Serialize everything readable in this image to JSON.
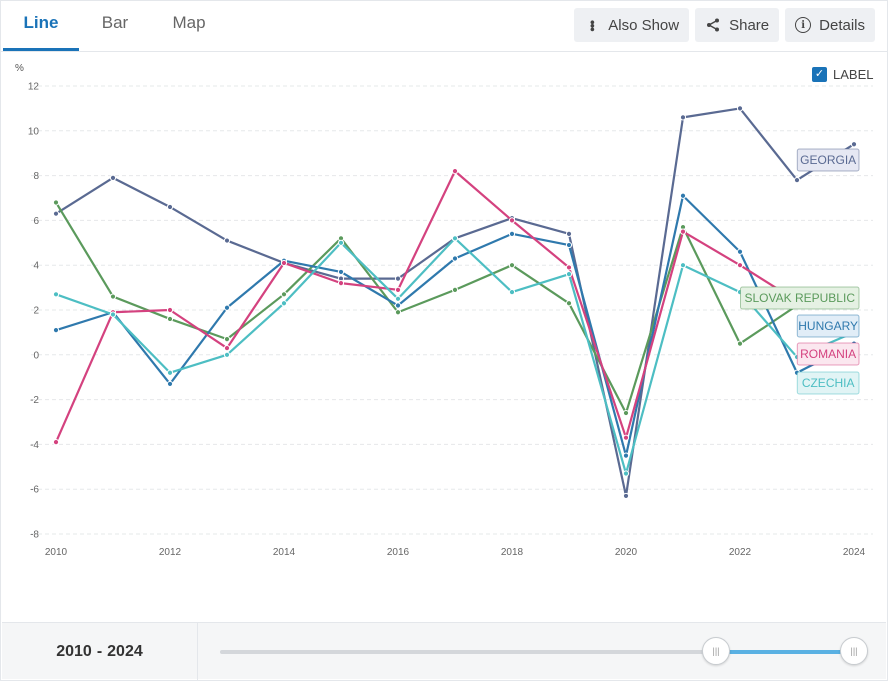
{
  "tabs": [
    {
      "label": "Line",
      "active": true
    },
    {
      "label": "Bar",
      "active": false
    },
    {
      "label": "Map",
      "active": false
    }
  ],
  "toolbar": {
    "also_show": "Also Show",
    "share": "Share",
    "details": "Details"
  },
  "label_toggle": {
    "text": "LABEL",
    "checked": true
  },
  "range": {
    "start": "2010",
    "separator": "-",
    "end": "2024"
  },
  "chart_data": {
    "type": "line",
    "unit": "%",
    "ylim": [
      -8,
      12
    ],
    "yticks": [
      12,
      10,
      8,
      6,
      4,
      2,
      0,
      -2,
      -4,
      -6,
      -8
    ],
    "xticks": [
      "2010",
      "2012",
      "2014",
      "2016",
      "2018",
      "2020",
      "2022",
      "2024"
    ],
    "x": [
      2010,
      2011,
      2012,
      2013,
      2014,
      2015,
      2016,
      2017,
      2018,
      2019,
      2020,
      2021,
      2022,
      2023,
      2024
    ],
    "grid": true,
    "series": [
      {
        "name": "GEORGIA",
        "color": "#5a6a92",
        "label_bg": "#e6e8f3",
        "values": [
          6.3,
          7.9,
          6.6,
          5.1,
          4.1,
          3.4,
          3.4,
          5.2,
          6.1,
          5.4,
          -6.3,
          10.6,
          11.0,
          7.8,
          9.4
        ]
      },
      {
        "name": "SLOVAK REPUBLIC",
        "color": "#5b9a5c",
        "label_bg": "#e5f1e3",
        "values": [
          6.8,
          2.6,
          1.6,
          0.7,
          2.7,
          5.2,
          1.9,
          2.9,
          4.0,
          2.3,
          -2.6,
          5.7,
          0.5,
          2.2,
          null
        ]
      },
      {
        "name": "HUNGARY",
        "color": "#2f79ad",
        "label_bg": "#e1edf7",
        "values": [
          1.1,
          1.9,
          -1.3,
          2.1,
          4.2,
          3.7,
          2.2,
          4.3,
          5.4,
          4.9,
          -4.5,
          7.1,
          4.6,
          -0.8,
          0.5
        ]
      },
      {
        "name": "ROMANIA",
        "color": "#d4427f",
        "label_bg": "#fbe7ef",
        "values": [
          -3.9,
          1.9,
          2.0,
          0.3,
          4.1,
          3.2,
          2.9,
          8.2,
          6.0,
          3.9,
          -3.7,
          5.5,
          4.0,
          2.4,
          null
        ]
      },
      {
        "name": "CZECHIA",
        "color": "#4dbec3",
        "label_bg": "#e1f4f5",
        "values": [
          2.7,
          1.8,
          -0.8,
          0.0,
          2.3,
          5.0,
          2.5,
          5.2,
          2.8,
          3.6,
          -5.3,
          4.0,
          2.8,
          -0.1,
          1.0
        ]
      }
    ],
    "labels_visible": true
  }
}
